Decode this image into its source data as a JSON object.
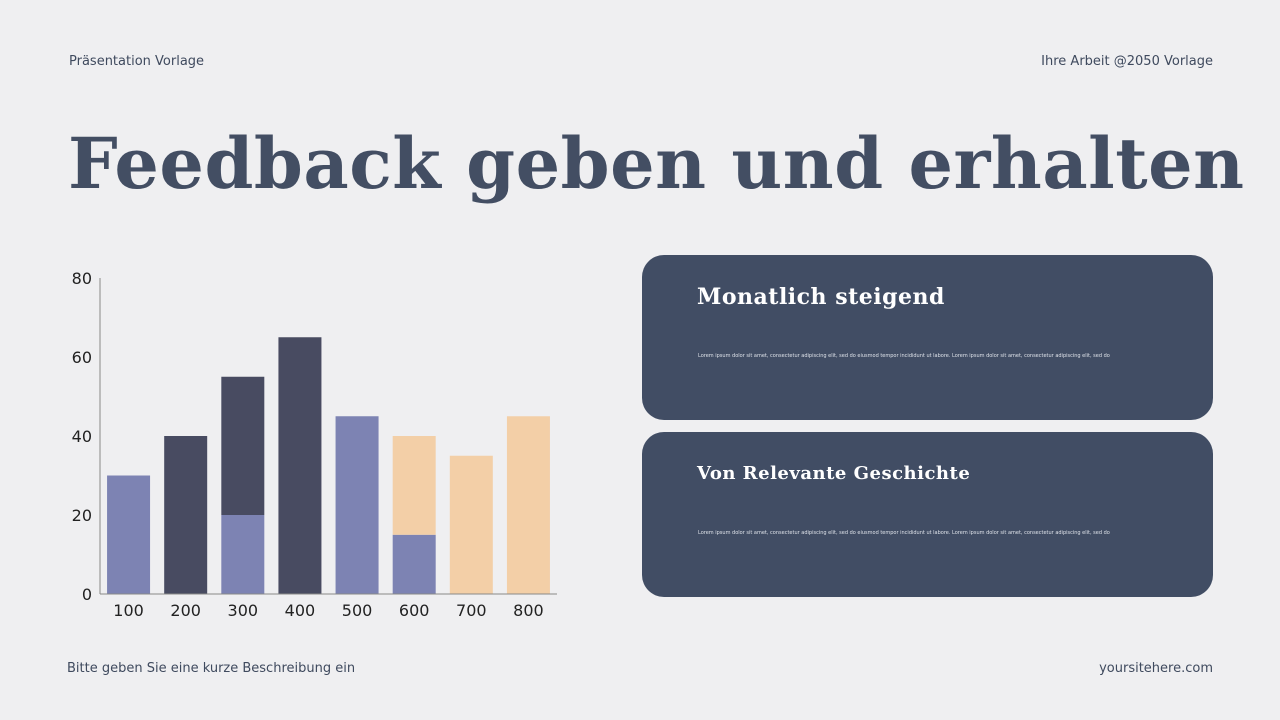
{
  "header": {
    "left": "Präsentation Vorlage",
    "right": "Ihre Arbeit @2050 Vorlage"
  },
  "title": "Feedback geben und erhalten",
  "footer": {
    "left": "Bitte geben Sie eine kurze Beschreibung ein",
    "right": "yoursitehere.com"
  },
  "cards": [
    {
      "title": "Monatlich steigend",
      "text": "Lorem ipsum dolor sit amet, consectetur adipiscing elit, sed do eiusmod tempor incididunt ut labore. Lorem ipsum dolor sit amet, consectetur adipiscing elit, sed do"
    },
    {
      "title": "Von Relevante Geschichte",
      "text": "Lorem ipsum dolor sit amet, consectetur adipiscing elit, sed do eiusmod tempor incididunt ut labore. Lorem ipsum dolor sit amet, consectetur adipiscing elit, sed do"
    }
  ],
  "colors": {
    "purple": "#7d83b3",
    "dark": "#484b61",
    "peach": "#f3cfa7",
    "card": "#414d64"
  },
  "chart_data": {
    "type": "bar",
    "stacked": true,
    "categories": [
      "100",
      "200",
      "300",
      "400",
      "500",
      "600",
      "700",
      "800"
    ],
    "bars": [
      [
        {
          "value": 30,
          "color": "purple"
        }
      ],
      [
        {
          "value": 40,
          "color": "dark"
        }
      ],
      [
        {
          "value": 20,
          "color": "purple"
        },
        {
          "value": 35,
          "color": "dark"
        }
      ],
      [
        {
          "value": 65,
          "color": "dark"
        }
      ],
      [
        {
          "value": 45,
          "color": "purple"
        }
      ],
      [
        {
          "value": 15,
          "color": "purple"
        },
        {
          "value": 25,
          "color": "peach"
        }
      ],
      [
        {
          "value": 35,
          "color": "peach"
        }
      ],
      [
        {
          "value": 45,
          "color": "peach"
        }
      ]
    ],
    "yticks": [
      "0",
      "20",
      "40",
      "60",
      "80"
    ],
    "ylim": [
      0,
      80
    ],
    "grid": false
  }
}
